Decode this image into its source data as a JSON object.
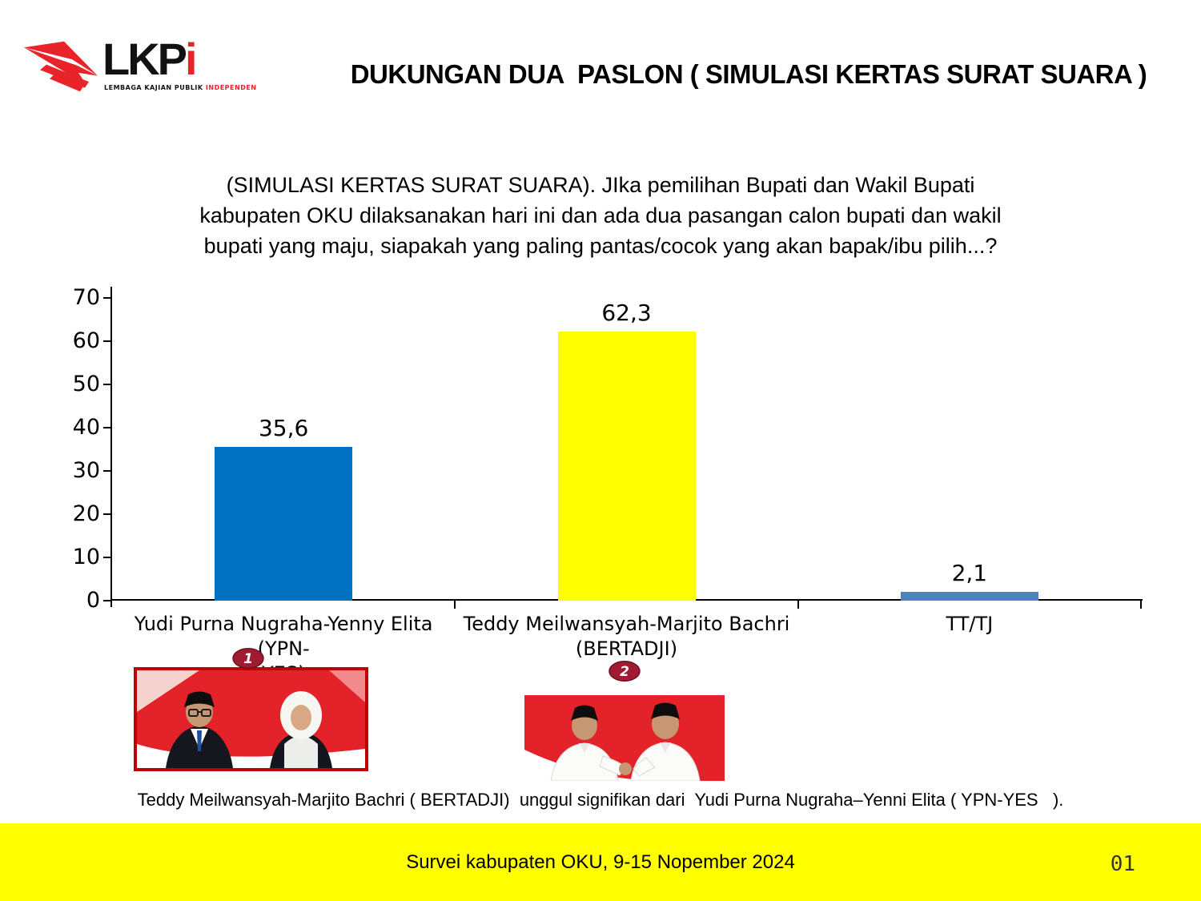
{
  "logo": {
    "text_black": "LKP",
    "text_red": "i",
    "tagline_black": "LEMBAGA KAJIAN PUBLIK ",
    "tagline_red": "INDEPENDEN"
  },
  "title": "DUKUNGAN DUA  PASLON ( SIMULASI KERTAS SURAT SUARA )",
  "question": {
    "lines": [
      "(SIMULASI KERTAS SURAT SUARA). JIka pemilihan Bupati dan Wakil Bupati",
      "kabupaten OKU dilaksanakan hari ini dan ada dua pasangan calon bupati dan wakil",
      "bupati yang maju, siapakah yang paling pantas/cocok yang akan bapak/ibu pilih...?"
    ]
  },
  "chart_data": {
    "type": "bar",
    "title": "",
    "categories": [
      "Yudi Purna Nugraha-Yenny Elita (YPN-YES)",
      "Teddy Meilwansyah-Marjito Bachri (BERTADJI)",
      "TT/TJ"
    ],
    "category_lines": [
      [
        "Yudi Purna Nugraha-Yenny Elita (YPN-",
        "YES)"
      ],
      [
        "Teddy Meilwansyah-Marjito Bachri",
        "(BERTADJI)"
      ],
      [
        "TT/TJ"
      ]
    ],
    "values": [
      35.6,
      62.3,
      2.1
    ],
    "value_labels": [
      "35,6",
      "62,3",
      "2,1"
    ],
    "bar_colors": [
      "#0070C0",
      "#FFFF00",
      "#4F81BD"
    ],
    "ylim": [
      0,
      70
    ],
    "yticks": [
      0,
      10,
      20,
      30,
      40,
      50,
      60,
      70
    ],
    "grid": false,
    "legend": false
  },
  "photos": [
    {
      "badge": "1",
      "caption": "Yudi Purna Nugraha-Yenny Elita (YPN-YES)"
    },
    {
      "badge": "2",
      "caption": "Teddy Meilwansyah-Marjito Bachri (BERTADJI)"
    }
  ],
  "summary": "Teddy Meilwansyah-Marjito Bachri ( BERTADJI)  unggul signifikan dari  Yudi Purna Nugraha–Yenni Elita ( YPN-YES   ).",
  "footer": {
    "text": "Survei kabupaten OKU, 9-15 Nopember 2024",
    "page": "01",
    "bg": "#FFFF00"
  },
  "colors": {
    "accent_red": "#E8232A",
    "badge_red": "#9E1B32",
    "photo_border_red": "#C00000",
    "footer_yellow": "#FFFF00"
  }
}
